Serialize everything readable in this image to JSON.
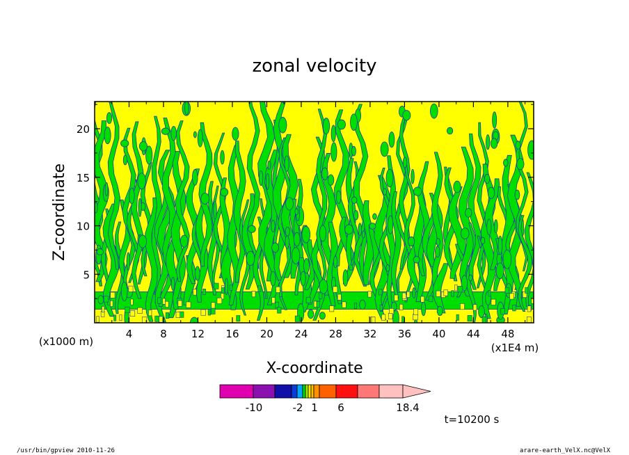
{
  "chart_data": {
    "type": "heatmap",
    "title": "zonal velocity",
    "xlabel": "X-coordinate",
    "ylabel": "Z-coordinate",
    "x_unit": "(x1E4 m)",
    "y_unit": "(x1000 m)",
    "xlim": [
      0,
      51
    ],
    "ylim": [
      0,
      22.8
    ],
    "x_ticks": [
      "4",
      "8",
      "12",
      "16",
      "20",
      "24",
      "28",
      "32",
      "36",
      "40",
      "44",
      "48"
    ],
    "y_ticks": [
      "5",
      "10",
      "15",
      "20"
    ],
    "field_colors": {
      "positive": "#ffff00",
      "negative": "#00dd00",
      "contour": "#1e3ca8"
    },
    "colorbar": {
      "colors": [
        "#e000b0",
        "#8a10b0",
        "#1010a8",
        "#0a3cd8",
        "#00a8ff",
        "#00e000",
        "#a0e800",
        "#ffe800",
        "#ffc000",
        "#ff9000",
        "#ff6000",
        "#ff1010",
        "#ff7878",
        "#ffc0c0"
      ],
      "tick_labels": [
        "-10",
        "-2",
        "1",
        "6",
        "18.4"
      ]
    },
    "time_label": "t=10200 s"
  },
  "footer": {
    "left": "/usr/bin/gpview  2010-11-26",
    "right": "arare-earth_VelX.nc@VelX"
  }
}
